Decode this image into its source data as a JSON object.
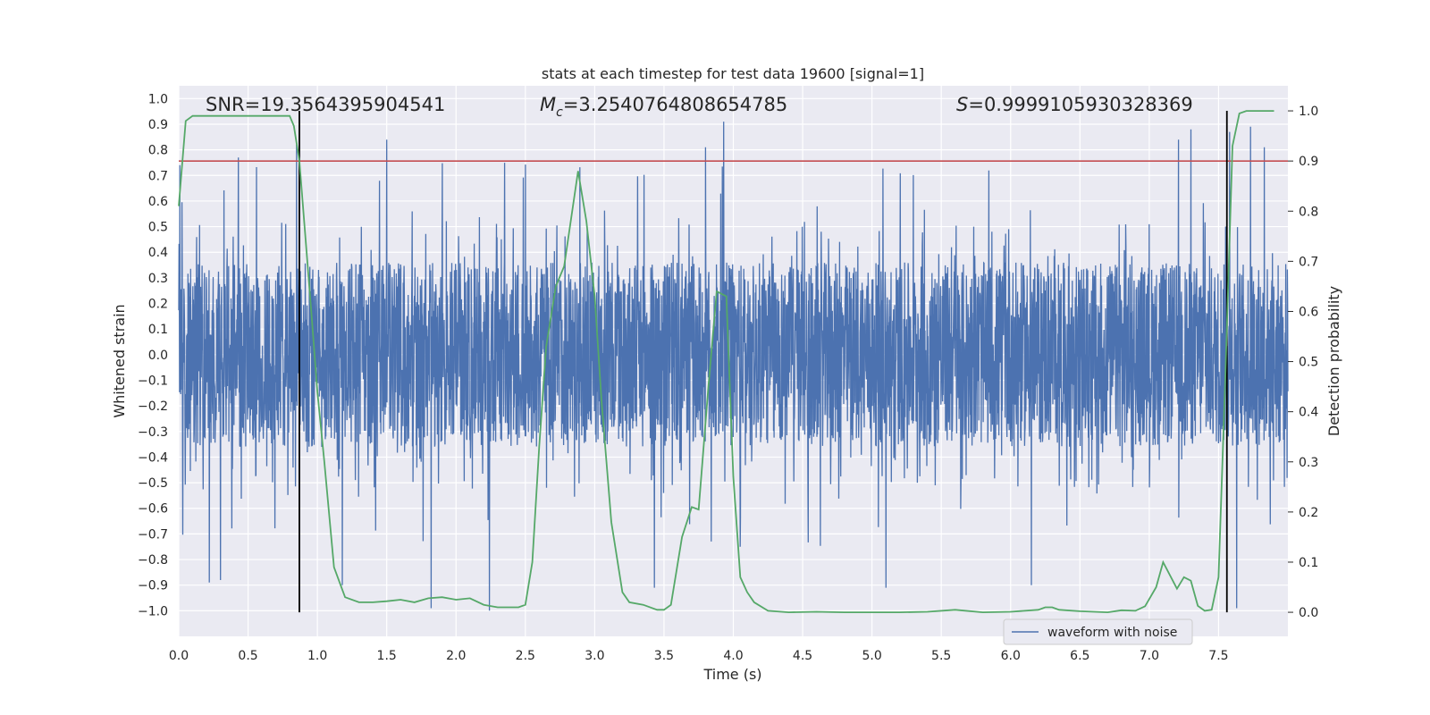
{
  "chart_data": {
    "type": "line",
    "title": "stats at each timestep for test data 19600 [signal=1]",
    "xlabel": "Time (s)",
    "ylabel": "Whitened strain",
    "y2label": "Detection probability",
    "xlim": [
      0.0,
      8.0
    ],
    "ylim": [
      -1.1,
      1.05
    ],
    "y2lim": [
      -0.048,
      1.05
    ],
    "xticks": [
      "0.0",
      "0.5",
      "1.0",
      "1.5",
      "2.0",
      "2.5",
      "3.0",
      "3.5",
      "4.0",
      "4.5",
      "5.0",
      "5.5",
      "6.0",
      "6.5",
      "7.0",
      "7.5"
    ],
    "xtick_values": [
      0.0,
      0.5,
      1.0,
      1.5,
      2.0,
      2.5,
      3.0,
      3.5,
      4.0,
      4.5,
      5.0,
      5.5,
      6.0,
      6.5,
      7.0,
      7.5
    ],
    "yticks": [
      "1.0",
      "0.9",
      "0.8",
      "0.7",
      "0.6",
      "0.5",
      "0.4",
      "0.3",
      "0.2",
      "0.1",
      "0.0",
      "−0.1",
      "−0.2",
      "−0.3",
      "−0.4",
      "−0.5",
      "−0.6",
      "−0.7",
      "−0.8",
      "−0.9",
      "−1.0"
    ],
    "ytick_values": [
      1.0,
      0.9,
      0.8,
      0.7,
      0.6,
      0.5,
      0.4,
      0.3,
      0.2,
      0.1,
      0.0,
      -0.1,
      -0.2,
      -0.3,
      -0.4,
      -0.5,
      -0.6,
      -0.7,
      -0.8,
      -0.9,
      -1.0
    ],
    "y2ticks": [
      "1.0",
      "0.9",
      "0.8",
      "0.7",
      "0.6",
      "0.5",
      "0.4",
      "0.3",
      "0.2",
      "0.1",
      "0.0"
    ],
    "y2tick_values": [
      1.0,
      0.9,
      0.8,
      0.7,
      0.6,
      0.5,
      0.4,
      0.3,
      0.2,
      0.1,
      0.0
    ],
    "annotations": {
      "snr": "SNR=19.3564395904541",
      "mc_symbol": "M",
      "mc_sub": "c",
      "mc_value": "=3.2540764808654785",
      "s_symbol": "S",
      "s_value": "=0.9999105930328369"
    },
    "legend": {
      "label": "waveform with noise",
      "placement": "lower-right"
    },
    "threshold": {
      "value": 0.9,
      "axis": "y2",
      "color": "#c44e52"
    },
    "vertical_lines": [
      0.87,
      7.56
    ],
    "waveform": {
      "name": "waveform with noise",
      "color": "#4c72b0",
      "x_range": [
        0.0,
        8.0
      ],
      "samples": 4096,
      "envelope": 0.36,
      "peaks": [
        {
          "x": 0.43,
          "y": 0.77
        },
        {
          "x": 0.85,
          "y": 0.82
        },
        {
          "x": 1.5,
          "y": 0.84
        },
        {
          "x": 2.24,
          "y": -1.0
        },
        {
          "x": 1.82,
          "y": -0.99
        },
        {
          "x": 3.8,
          "y": 0.81
        },
        {
          "x": 3.93,
          "y": 0.91
        },
        {
          "x": 3.43,
          "y": -0.91
        },
        {
          "x": 5.1,
          "y": -0.91
        },
        {
          "x": 6.15,
          "y": -0.9
        },
        {
          "x": 7.3,
          "y": 0.88
        },
        {
          "x": 7.63,
          "y": -0.99
        },
        {
          "x": 7.58,
          "y": 0.87
        },
        {
          "x": 7.73,
          "y": 0.89
        },
        {
          "x": 7.83,
          "y": 0.81
        },
        {
          "x": 0.22,
          "y": -0.89
        },
        {
          "x": 0.3,
          "y": -0.88
        },
        {
          "x": 1.18,
          "y": -0.9
        },
        {
          "x": 4.05,
          "y": -0.75
        },
        {
          "x": 7.21,
          "y": 0.84
        }
      ]
    },
    "detection_probability": {
      "name": "Detection probability",
      "color": "#55a868",
      "x": [
        0.0,
        0.05,
        0.1,
        0.15,
        0.2,
        0.3,
        0.4,
        0.5,
        0.6,
        0.7,
        0.8,
        0.83,
        0.87,
        0.95,
        1.0,
        1.05,
        1.12,
        1.2,
        1.3,
        1.4,
        1.5,
        1.6,
        1.7,
        1.8,
        1.9,
        2.0,
        2.1,
        2.2,
        2.3,
        2.4,
        2.45,
        2.5,
        2.55,
        2.6,
        2.65,
        2.72,
        2.78,
        2.88,
        2.94,
        3.0,
        3.05,
        3.12,
        3.2,
        3.25,
        3.35,
        3.45,
        3.5,
        3.55,
        3.63,
        3.7,
        3.75,
        3.82,
        3.88,
        3.95,
        4.0,
        4.05,
        4.1,
        4.15,
        4.25,
        4.4,
        4.6,
        4.8,
        5.0,
        5.2,
        5.4,
        5.6,
        5.8,
        6.0,
        6.2,
        6.25,
        6.3,
        6.35,
        6.5,
        6.7,
        6.8,
        6.9,
        6.97,
        7.05,
        7.1,
        7.2,
        7.25,
        7.3,
        7.35,
        7.4,
        7.45,
        7.5,
        7.55,
        7.6,
        7.65,
        7.7,
        7.8,
        7.9
      ],
      "y": [
        0.81,
        0.98,
        0.99,
        0.99,
        0.99,
        0.99,
        0.99,
        0.99,
        0.99,
        0.99,
        0.99,
        0.97,
        0.9,
        0.62,
        0.44,
        0.3,
        0.09,
        0.03,
        0.02,
        0.02,
        0.022,
        0.025,
        0.02,
        0.028,
        0.03,
        0.025,
        0.028,
        0.015,
        0.01,
        0.01,
        0.01,
        0.015,
        0.1,
        0.33,
        0.53,
        0.65,
        0.69,
        0.88,
        0.78,
        0.63,
        0.42,
        0.18,
        0.04,
        0.02,
        0.015,
        0.005,
        0.005,
        0.015,
        0.15,
        0.21,
        0.205,
        0.45,
        0.64,
        0.63,
        0.27,
        0.07,
        0.04,
        0.02,
        0.003,
        0.0,
        0.001,
        0.0,
        0.0,
        0.0,
        0.001,
        0.005,
        0.0,
        0.001,
        0.005,
        0.01,
        0.01,
        0.005,
        0.002,
        0.0,
        0.004,
        0.003,
        0.012,
        0.05,
        0.1,
        0.047,
        0.07,
        0.063,
        0.013,
        0.003,
        0.005,
        0.07,
        0.48,
        0.93,
        0.995,
        1.0,
        1.0,
        1.0
      ]
    }
  }
}
